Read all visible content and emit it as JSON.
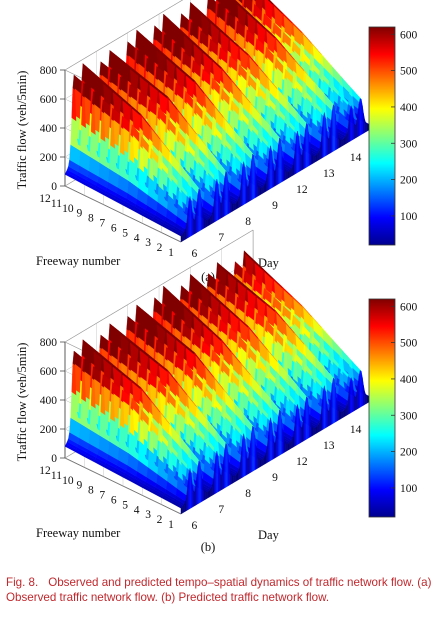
{
  "caption": {
    "figure_number": "Fig. 8.",
    "text": "Observed and predicted tempo–spatial dynamics of traffic network flow. (a) Observed traffic network flow. (b) Predicted traffic network flow."
  },
  "colormap": "jet",
  "chart_data": [
    {
      "type": "surface3d",
      "panel_label": "(a)",
      "zlabel": "Traffic flow (veh/5min)",
      "xlabel": "Day",
      "ylabel": "Freeway number",
      "x_ticks": [
        "6",
        "7",
        "8",
        "9",
        "12",
        "13",
        "14"
      ],
      "y_ticks": [
        "12",
        "11",
        "10",
        "9",
        "8",
        "7",
        "6",
        "5",
        "4",
        "3",
        "2",
        "1"
      ],
      "z_ticks": [
        "0",
        "200",
        "400",
        "600",
        "800"
      ],
      "zlim": [
        0,
        800
      ],
      "colorbar": {
        "ticks": [
          "100",
          "200",
          "300",
          "400",
          "500",
          "600"
        ],
        "range": [
          20,
          620
        ]
      },
      "days": [
        6,
        7,
        8,
        9,
        12,
        13,
        14
      ],
      "daily_peak_far_freeway": [
        790,
        770,
        800,
        800,
        770,
        790,
        740
      ],
      "daily_peak_mid_freeway": [
        630,
        640,
        640,
        620,
        600,
        610,
        530
      ],
      "daily_peak_near_freeway": [
        300,
        310,
        320,
        320,
        310,
        330,
        260
      ],
      "grid": true
    },
    {
      "type": "surface3d",
      "panel_label": "(b)",
      "zlabel": "Traffic flow (veh/5min)",
      "xlabel": "Day",
      "ylabel": "Freeway number",
      "x_ticks": [
        "6",
        "7",
        "8",
        "9",
        "12",
        "13",
        "14"
      ],
      "y_ticks": [
        "12",
        "11",
        "10",
        "9",
        "8",
        "7",
        "6",
        "5",
        "4",
        "3",
        "2",
        "1"
      ],
      "z_ticks": [
        "0",
        "200",
        "400",
        "600",
        "800"
      ],
      "zlim": [
        0,
        800
      ],
      "colorbar": {
        "ticks": [
          "100",
          "200",
          "300",
          "400",
          "500",
          "600"
        ],
        "range": [
          20,
          620
        ]
      },
      "days": [
        6,
        7,
        8,
        9,
        12,
        13,
        14
      ],
      "daily_peak_far_freeway": [
        760,
        760,
        780,
        800,
        770,
        740,
        710
      ],
      "daily_peak_mid_freeway": [
        620,
        630,
        640,
        620,
        600,
        600,
        520
      ],
      "daily_peak_near_freeway": [
        300,
        310,
        320,
        320,
        300,
        320,
        260
      ],
      "grid": true
    }
  ]
}
